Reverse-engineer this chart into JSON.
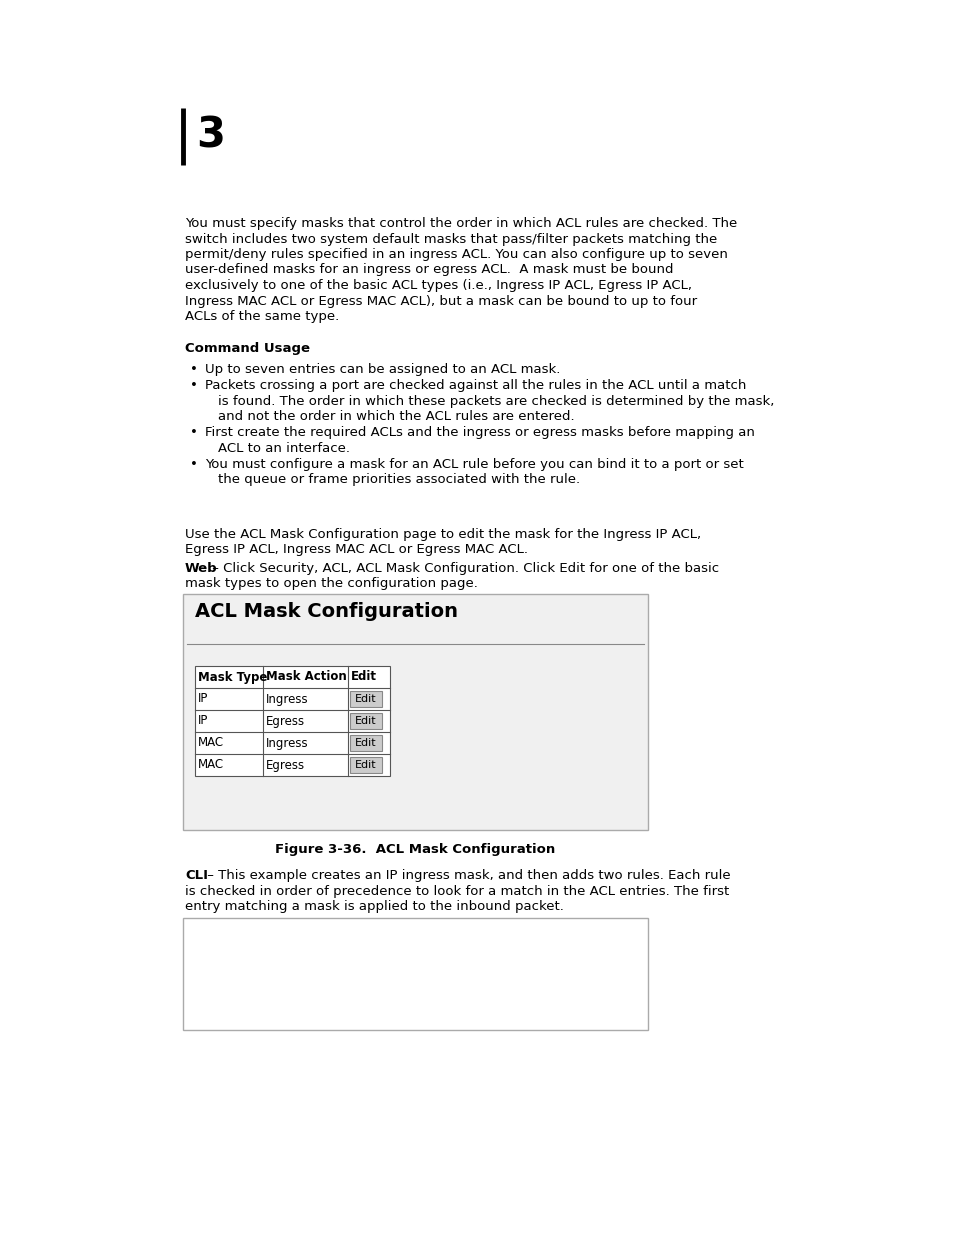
{
  "page_bg": "#ffffff",
  "chapter_num": "3",
  "para1_lines": [
    "You must specify masks that control the order in which ACL rules are checked. The",
    "switch includes two system default masks that pass/filter packets matching the",
    "permit/deny rules specified in an ingress ACL. You can also configure up to seven",
    "user-defined masks for an ingress or egress ACL.  A mask must be bound",
    "exclusively to one of the basic ACL types (i.e., Ingress IP ACL, Egress IP ACL,",
    "Ingress MAC ACL or Egress MAC ACL), but a mask can be bound to up to four",
    "ACLs of the same type."
  ],
  "section_bold": "Command Usage",
  "bullet1": "Up to seven entries can be assigned to an ACL mask.",
  "bullet2_lines": [
    "Packets crossing a port are checked against all the rules in the ACL until a match",
    "is found. The order in which these packets are checked is determined by the mask,",
    "and not the order in which the ACL rules are entered."
  ],
  "bullet3_lines": [
    "First create the required ACLs and the ingress or egress masks before mapping an",
    "ACL to an interface."
  ],
  "bullet4_lines": [
    "You must configure a mask for an ACL rule before you can bind it to a port or set",
    "the queue or frame priorities associated with the rule."
  ],
  "para2_lines": [
    "Use the ACL Mask Configuration page to edit the mask for the Ingress IP ACL,",
    "Egress IP ACL, Ingress MAC ACL or Egress MAC ACL."
  ],
  "web_label": "Web",
  "web_text1": " – Click Security, ACL, ACL Mask Configuration. Click Edit for one of the basic",
  "web_text2": "mask types to open the configuration page.",
  "box_title": "ACL Mask Configuration",
  "table_headers": [
    "Mask Type",
    "Mask Action",
    "Edit"
  ],
  "table_rows": [
    [
      "IP",
      "Ingress",
      "Edit"
    ],
    [
      "IP",
      "Egress",
      "Edit"
    ],
    [
      "MAC",
      "Ingress",
      "Edit"
    ],
    [
      "MAC",
      "Egress",
      "Edit"
    ]
  ],
  "figure_caption": "Figure 3-36.  ACL Mask Configuration",
  "cli_label": "CLI",
  "cli_text_lines": [
    " – This example creates an IP ingress mask, and then adds two rules. Each rule",
    "is checked in order of precedence to look for a match in the ACL entries. The first",
    "entry matching a mask is applied to the inbound packet."
  ]
}
